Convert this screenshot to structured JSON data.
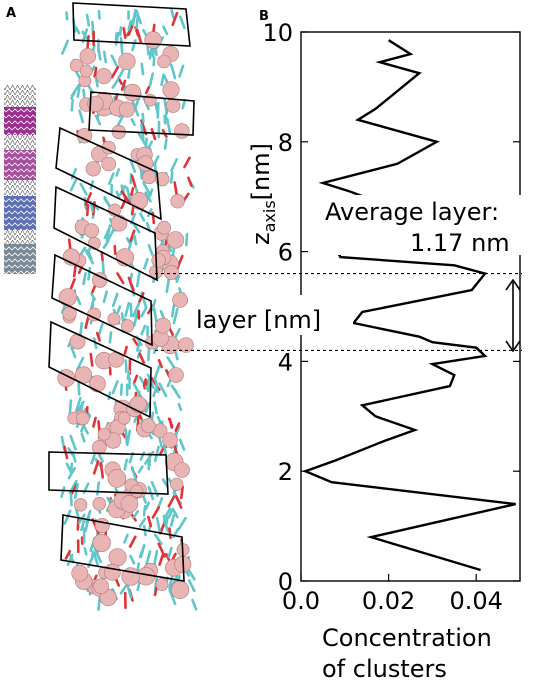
{
  "panels": {
    "a_label": "A",
    "b_label": "B"
  },
  "chart_data": {
    "type": "line",
    "orientation": "vertical-profile",
    "ylabel_main": "z",
    "ylabel_sub": "axis",
    "ylabel_unit": "[nm]",
    "xlabel_line1": "Concentration",
    "xlabel_line2": "of clusters",
    "xlim": [
      0.0,
      0.05
    ],
    "ylim": [
      0,
      10
    ],
    "xticks": [
      0.0,
      0.02,
      0.04
    ],
    "xtick_labels": [
      "0.0",
      "0.02",
      "0.04"
    ],
    "yticks": [
      0,
      2,
      4,
      6,
      8,
      10
    ],
    "ytick_labels": [
      "0",
      "2",
      "4",
      "6",
      "8",
      "10"
    ],
    "grid": false,
    "series": [
      {
        "color": "#000000",
        "points": [
          [
            0.041,
            0.2
          ],
          [
            0.016,
            0.8
          ],
          [
            0.049,
            1.4
          ],
          [
            0.007,
            1.8
          ],
          [
            0.001,
            2.0
          ],
          [
            0.008,
            2.2
          ],
          [
            0.019,
            2.55
          ],
          [
            0.026,
            2.75
          ],
          [
            0.017,
            3.0
          ],
          [
            0.014,
            3.2
          ],
          [
            0.034,
            3.55
          ],
          [
            0.035,
            3.75
          ],
          [
            0.03,
            3.95
          ],
          [
            0.042,
            4.1
          ],
          [
            0.04,
            4.25
          ],
          [
            0.03,
            4.35
          ],
          [
            0.027,
            4.45
          ],
          [
            0.012,
            4.7
          ],
          [
            0.014,
            4.9
          ],
          [
            0.039,
            5.3
          ],
          [
            0.042,
            5.6
          ],
          [
            0.035,
            5.75
          ],
          [
            0.009,
            5.9
          ],
          [
            0.008,
            6.05
          ]
        ]
      },
      {
        "color": "#aaaaaa",
        "points": [
          [
            0.008,
            6.05
          ],
          [
            0.006,
            6.4
          ],
          [
            0.012,
            6.6
          ],
          [
            0.02,
            6.7
          ]
        ]
      },
      {
        "color": "#000000",
        "points": [
          [
            0.02,
            6.7
          ],
          [
            0.016,
            6.95
          ],
          [
            0.011,
            7.1
          ],
          [
            0.005,
            7.25
          ],
          [
            0.022,
            7.6
          ],
          [
            0.031,
            8.0
          ],
          [
            0.013,
            8.4
          ],
          [
            0.017,
            8.6
          ],
          [
            0.027,
            9.25
          ],
          [
            0.018,
            9.45
          ],
          [
            0.025,
            9.6
          ],
          [
            0.02,
            9.85
          ]
        ]
      }
    ],
    "annotations": {
      "average_layer_line1": "Average layer:",
      "average_layer_line2": "1.17 nm",
      "layer_label": "layer [nm]",
      "dashed_lines_z": [
        5.6,
        4.2
      ]
    }
  }
}
